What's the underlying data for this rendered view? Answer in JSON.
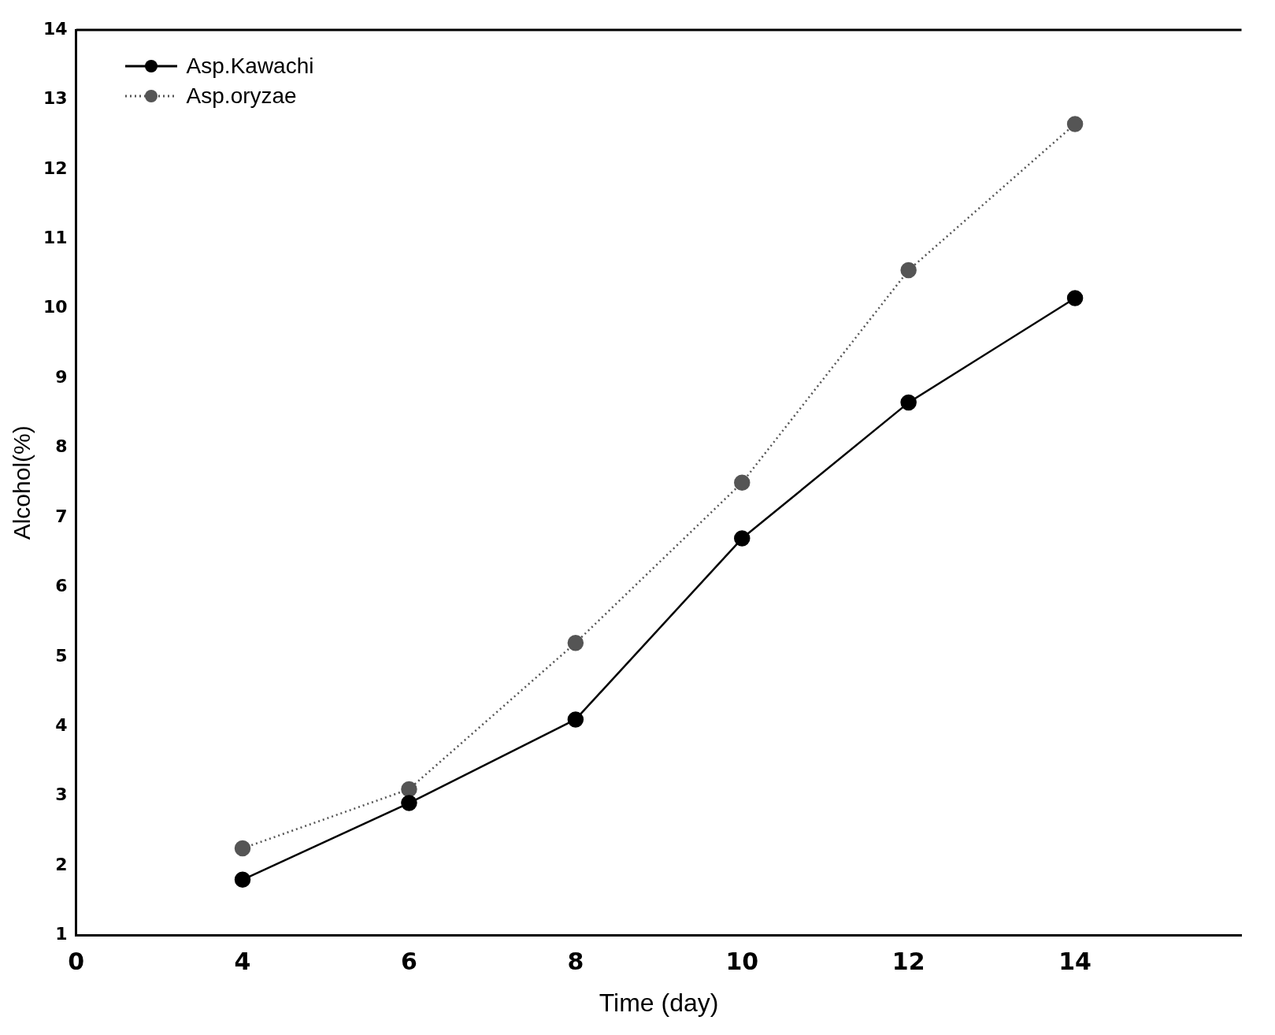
{
  "chart_data": {
    "type": "line",
    "xlabel": "Time (day)",
    "ylabel": "Alcohol(%)",
    "categories": [
      "0",
      "4",
      "6",
      "8",
      "10",
      "12",
      "14",
      null
    ],
    "series": [
      {
        "name": "Asp.Kawachi",
        "color": "#000000",
        "values": [
          null,
          1.8,
          2.9,
          4.1,
          6.7,
          8.65,
          10.15,
          null
        ],
        "marker": "circle",
        "line_style": "solid"
      },
      {
        "name": "Asp.oryzae",
        "color": "#555555",
        "values": [
          null,
          2.25,
          3.1,
          5.2,
          7.5,
          10.55,
          12.65,
          null
        ],
        "marker": "circle",
        "line_style": "dotted"
      }
    ],
    "ylim": [
      1,
      14
    ],
    "yticks": [
      1,
      2,
      3,
      4,
      5,
      6,
      7,
      8,
      9,
      10,
      11,
      12,
      13,
      14
    ],
    "grid": false,
    "legend": "top left"
  }
}
